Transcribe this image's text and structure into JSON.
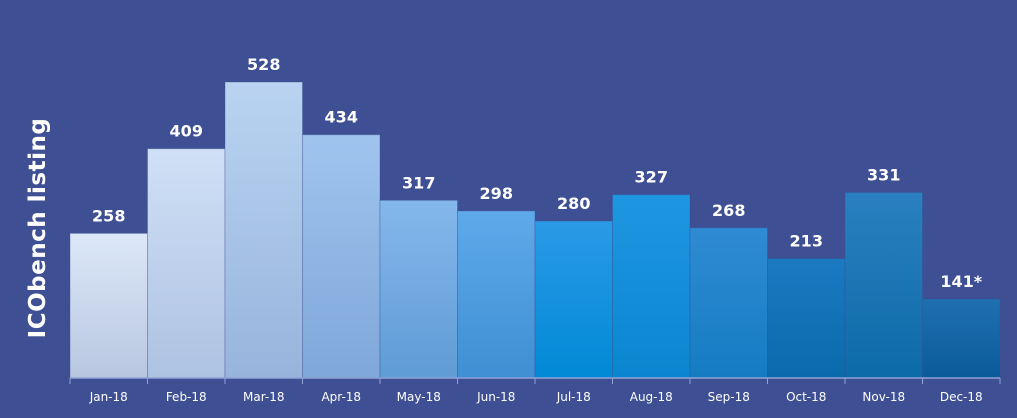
{
  "background": "#3e4f93",
  "chart_data": {
    "type": "bar",
    "title": "",
    "xlabel": "",
    "ylabel": "ICObench listing",
    "categories": [
      "Jan-18",
      "Feb-18",
      "Mar-18",
      "Apr-18",
      "May-18",
      "Jun-18",
      "Jul-18",
      "Aug-18",
      "Sep-18",
      "Oct-18",
      "Nov-18",
      "Dec-18"
    ],
    "values": [
      258,
      409,
      528,
      434,
      317,
      298,
      280,
      327,
      268,
      213,
      331,
      141
    ],
    "value_labels": [
      "258",
      "409",
      "528",
      "434",
      "317",
      "298",
      "280",
      "327",
      "268",
      "213",
      "331",
      "141*"
    ],
    "ylim": [
      0,
      528
    ],
    "grid": false,
    "legend": "none",
    "bar_colors": [
      [
        "#dce8f8",
        "#b8c6e0"
      ],
      [
        "#cfe0f6",
        "#aec2e2"
      ],
      [
        "#b9d3f1",
        "#98b4dc"
      ],
      [
        "#9fc4ee",
        "#7fa7d9"
      ],
      [
        "#84b8ec",
        "#5f9bd5"
      ],
      [
        "#5ea9e9",
        "#3f8fd4"
      ],
      [
        "#2b9ae6",
        "#0089d6"
      ],
      [
        "#1f96e2",
        "#0a86cf"
      ],
      [
        "#2f8bd3",
        "#157cc2"
      ],
      [
        "#1b7ac2",
        "#0a6aab"
      ],
      [
        "#2a80c0",
        "#0d6aa8"
      ],
      [
        "#1f70b0",
        "#0a5b99"
      ]
    ],
    "axis_color": "#8fa3d6"
  }
}
